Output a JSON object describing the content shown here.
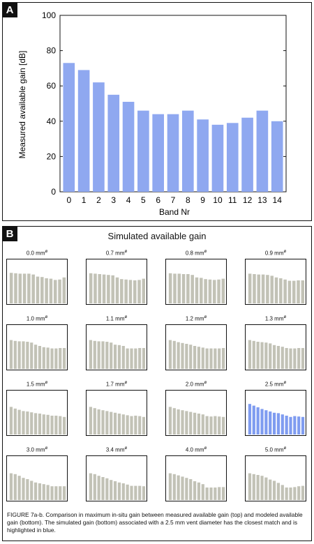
{
  "panels": {
    "a_label": "A",
    "b_label": "B"
  },
  "chart_data": [
    {
      "type": "bar",
      "title": "",
      "xlabel": "Band Nr",
      "ylabel": "Measured available gain [dB]",
      "categories": [
        "0",
        "1",
        "2",
        "3",
        "4",
        "5",
        "6",
        "7",
        "8",
        "9",
        "10",
        "11",
        "12",
        "13",
        "14"
      ],
      "values": [
        73,
        69,
        62,
        55,
        51,
        46,
        44,
        44,
        46,
        41,
        38,
        39,
        42,
        46,
        40
      ],
      "ylim": [
        0,
        100
      ],
      "yticks": [
        "0",
        "20",
        "40",
        "60",
        "80",
        "100"
      ],
      "bar_color": "#8fa8f0"
    },
    {
      "type": "bar",
      "title": "Simulated available gain",
      "unit_superscript": "ø",
      "highlight_color": "#7f9cf0",
      "default_color": "#c2c2b6",
      "ylim": [
        0,
        100
      ],
      "small_multiples": [
        {
          "label": "0.0 mm",
          "values": [
            73,
            72,
            71,
            71,
            71,
            69,
            64,
            63,
            60,
            59,
            56,
            57,
            62
          ],
          "highlight": false
        },
        {
          "label": "0.7 mm",
          "values": [
            72,
            71,
            70,
            69,
            68,
            67,
            62,
            58,
            57,
            56,
            55,
            56,
            59
          ],
          "highlight": false
        },
        {
          "label": "0.8 mm",
          "values": [
            72,
            71,
            71,
            70,
            70,
            68,
            62,
            61,
            58,
            57,
            56,
            57,
            59
          ],
          "highlight": false
        },
        {
          "label": "0.9 mm",
          "values": [
            71,
            70,
            69,
            69,
            68,
            66,
            62,
            60,
            57,
            54,
            54,
            55,
            55
          ],
          "highlight": false
        },
        {
          "label": "1.0 mm",
          "values": [
            69,
            67,
            66,
            66,
            65,
            63,
            58,
            55,
            52,
            51,
            49,
            49,
            50,
            50
          ],
          "highlight": false
        },
        {
          "label": "1.1 mm",
          "values": [
            69,
            67,
            66,
            66,
            65,
            63,
            58,
            57,
            55,
            49,
            49,
            49,
            50,
            50
          ],
          "highlight": false
        },
        {
          "label": "1.2 mm",
          "values": [
            69,
            67,
            64,
            62,
            60,
            58,
            55,
            53,
            51,
            49,
            49,
            49,
            49,
            50
          ],
          "highlight": false
        },
        {
          "label": "1.3 mm",
          "values": [
            69,
            67,
            65,
            64,
            63,
            61,
            57,
            55,
            53,
            50,
            49,
            49,
            50,
            50
          ],
          "highlight": false
        },
        {
          "label": "1.5 mm",
          "values": [
            66,
            62,
            59,
            56,
            55,
            53,
            51,
            50,
            48,
            47,
            45,
            45,
            44,
            42
          ],
          "highlight": false
        },
        {
          "label": "1.7 mm",
          "values": [
            66,
            63,
            60,
            58,
            56,
            54,
            52,
            50,
            48,
            46,
            44,
            45,
            44,
            42
          ],
          "highlight": false
        },
        {
          "label": "2.0 mm",
          "values": [
            66,
            63,
            60,
            58,
            56,
            54,
            52,
            50,
            48,
            44,
            43,
            44,
            43,
            42
          ],
          "highlight": false
        },
        {
          "label": "2.5 mm",
          "values": [
            73,
            69,
            65,
            61,
            58,
            55,
            52,
            51,
            48,
            45,
            42,
            44,
            43,
            42
          ],
          "highlight": true
        },
        {
          "label": "3.0 mm",
          "values": [
            64,
            62,
            58,
            53,
            50,
            46,
            42,
            40,
            38,
            36,
            33,
            33,
            33,
            33
          ],
          "highlight": false
        },
        {
          "label": "3.4 mm",
          "values": [
            64,
            62,
            58,
            55,
            52,
            48,
            45,
            42,
            40,
            37,
            34,
            34,
            34,
            33
          ],
          "highlight": false
        },
        {
          "label": "4.0 mm",
          "values": [
            64,
            62,
            59,
            56,
            53,
            50,
            45,
            42,
            38,
            30,
            30,
            30,
            31,
            31
          ],
          "highlight": false
        },
        {
          "label": "5.0 mm",
          "values": [
            64,
            62,
            60,
            58,
            54,
            49,
            46,
            41,
            36,
            30,
            30,
            31,
            33,
            34
          ],
          "highlight": false
        }
      ]
    }
  ],
  "caption": "FIGURE 7a-b. Comparison in maximum in-situ gain between measured available gain (top) and modeled available gain (bottom). The simulated gain (bottom) associated with a 2.5 mm vent diameter has the closest match and is highlighted in blue."
}
